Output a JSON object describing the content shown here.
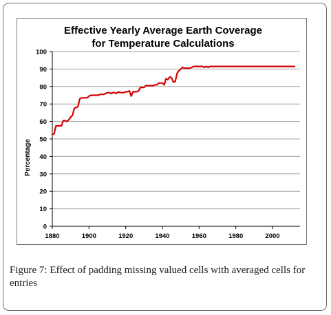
{
  "figure": {
    "caption_label": "Figure 7:",
    "caption_text": " Effect of padding missing valued cells with averaged cells for entries"
  },
  "colors": {
    "series": "#d40000",
    "grid": "#a0a0a0",
    "axis": "#000000"
  },
  "chart_data": {
    "type": "line",
    "title": "Effective Yearly Average Earth Coverage",
    "subtitle": "for Temperature Calculations",
    "xlabel": "",
    "ylabel": "Percentage",
    "xlim": [
      1880,
      2015
    ],
    "ylim": [
      0,
      100
    ],
    "xticks": [
      1880,
      1900,
      1920,
      1940,
      1960,
      1980,
      2000
    ],
    "yticks": [
      0,
      10,
      20,
      30,
      40,
      50,
      60,
      70,
      80,
      90,
      100
    ],
    "grid": true,
    "legend": "none",
    "series": [
      {
        "x": [
          1880,
          1881,
          1882,
          1883,
          1884,
          1885,
          1886,
          1887,
          1888,
          1889,
          1890,
          1891,
          1892,
          1893,
          1894,
          1895,
          1896,
          1897,
          1898,
          1899,
          1900,
          1901,
          1902,
          1903,
          1904,
          1905,
          1906,
          1907,
          1908,
          1909,
          1910,
          1911,
          1912,
          1913,
          1914,
          1915,
          1916,
          1917,
          1918,
          1919,
          1920,
          1921,
          1922,
          1923,
          1924,
          1925,
          1926,
          1927,
          1928,
          1929,
          1930,
          1931,
          1932,
          1933,
          1934,
          1935,
          1936,
          1937,
          1938,
          1939,
          1940,
          1941,
          1942,
          1943,
          1944,
          1945,
          1946,
          1947,
          1948,
          1949,
          1950,
          1951,
          1952,
          1953,
          1954,
          1955,
          1956,
          1957,
          1958,
          1959,
          1960,
          1961,
          1962,
          1963,
          1964,
          1965,
          1966,
          1967,
          1968,
          1969,
          1970,
          1975,
          1980,
          1985,
          1990,
          1995,
          2000,
          2005,
          2010,
          2012
        ],
        "y": [
          52.5,
          53,
          57.5,
          57.5,
          57.5,
          57.5,
          60.5,
          60.5,
          60,
          61,
          62.5,
          63.5,
          67.5,
          68,
          68.5,
          73,
          73.5,
          73.5,
          73.5,
          73.5,
          74.5,
          75,
          75,
          75,
          75,
          75,
          75.5,
          75.5,
          75.5,
          76,
          76.5,
          76.5,
          76,
          76.5,
          76.5,
          76,
          77,
          76.5,
          76.5,
          76.5,
          77,
          77,
          77.5,
          74.5,
          77,
          77,
          77,
          77.5,
          79.5,
          79.5,
          79.5,
          80.5,
          80.5,
          80.5,
          80.5,
          80.5,
          81,
          81,
          82,
          82,
          82,
          81,
          84.5,
          84,
          85.5,
          85,
          82.5,
          83,
          87.5,
          89,
          90,
          91,
          90.5,
          90.5,
          90.5,
          90.5,
          91,
          91.5,
          91.5,
          91.5,
          91.5,
          91.5,
          91.5,
          91,
          91.5,
          91,
          91.5,
          91.5,
          91.5,
          91.5,
          91.5,
          91.5,
          91.5,
          91.5,
          91.5,
          91.5,
          91.5,
          91.5,
          91.5,
          91.5
        ]
      }
    ]
  }
}
